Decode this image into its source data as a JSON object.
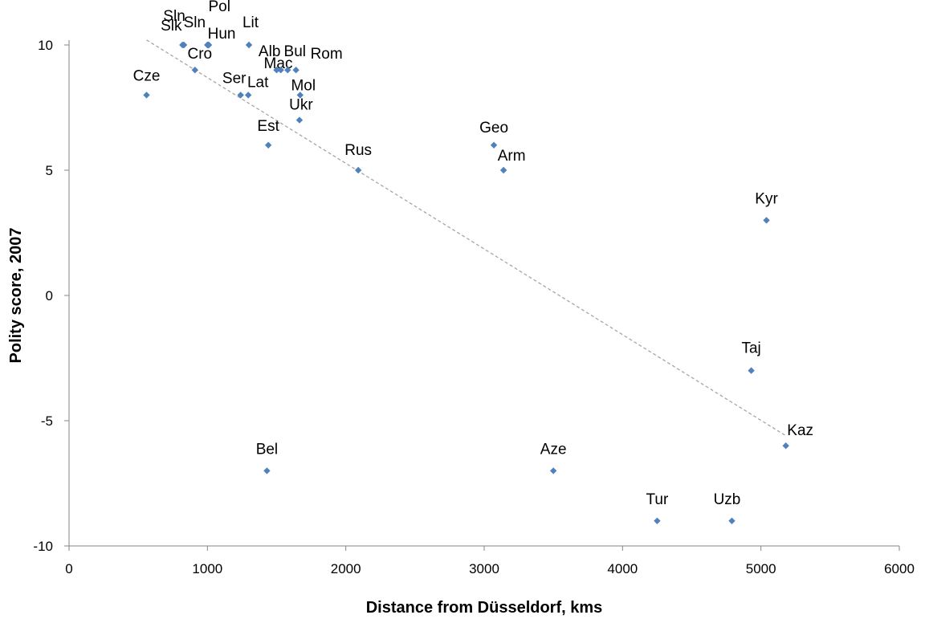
{
  "chart_data": {
    "type": "scatter",
    "title": "",
    "xlabel": "Distance from Düsseldorf, kms",
    "ylabel": "Polity score, 2007",
    "xlim": [
      0,
      6000
    ],
    "ylim": [
      -10,
      10
    ],
    "xticks": [
      "0",
      "1000",
      "2000",
      "3000",
      "4000",
      "5000",
      "6000"
    ],
    "yticks": [
      "10",
      "5",
      "0",
      "-5",
      "-10"
    ],
    "grid": false,
    "legend": "none",
    "marker_color": "#4f81bd",
    "trendline": {
      "x1": 560,
      "y1": 10.2,
      "x2": 5180,
      "y2": -5.6,
      "color": "#a6a6a6",
      "style": "dashed"
    },
    "points": [
      {
        "label": "Cze",
        "x": 560,
        "y": 8
      },
      {
        "label": "Slk",
        "x": 820,
        "y": 10
      },
      {
        "label": "Sln",
        "x": 830,
        "y": 10
      },
      {
        "label": "Sln",
        "x": 1000,
        "y": 10
      },
      {
        "label": "Pol",
        "x": 1005,
        "y": 10
      },
      {
        "label": "Hun",
        "x": 1010,
        "y": 10
      },
      {
        "label": "Cro",
        "x": 910,
        "y": 9
      },
      {
        "label": "Lit",
        "x": 1300,
        "y": 10
      },
      {
        "label": "Mac",
        "x": 1500,
        "y": 9
      },
      {
        "label": "Alb",
        "x": 1530,
        "y": 9
      },
      {
        "label": "Bul",
        "x": 1580,
        "y": 9
      },
      {
        "label": "Rom",
        "x": 1640,
        "y": 9
      },
      {
        "label": "Ser",
        "x": 1240,
        "y": 8
      },
      {
        "label": "Lat",
        "x": 1295,
        "y": 8
      },
      {
        "label": "Mol",
        "x": 1670,
        "y": 8
      },
      {
        "label": "Ukr",
        "x": 1665,
        "y": 7
      },
      {
        "label": "Est",
        "x": 1440,
        "y": 6
      },
      {
        "label": "Rus",
        "x": 2090,
        "y": 5
      },
      {
        "label": "Geo",
        "x": 3070,
        "y": 6
      },
      {
        "label": "Arm",
        "x": 3140,
        "y": 5
      },
      {
        "label": "Kyr",
        "x": 5040,
        "y": 3
      },
      {
        "label": "Taj",
        "x": 4930,
        "y": -3
      },
      {
        "label": "Kaz",
        "x": 5180,
        "y": -6
      },
      {
        "label": "Bel",
        "x": 1430,
        "y": -7
      },
      {
        "label": "Aze",
        "x": 3500,
        "y": -7
      },
      {
        "label": "Tur",
        "x": 4250,
        "y": -9
      },
      {
        "label": "Uzb",
        "x": 4790,
        "y": -9
      }
    ]
  }
}
